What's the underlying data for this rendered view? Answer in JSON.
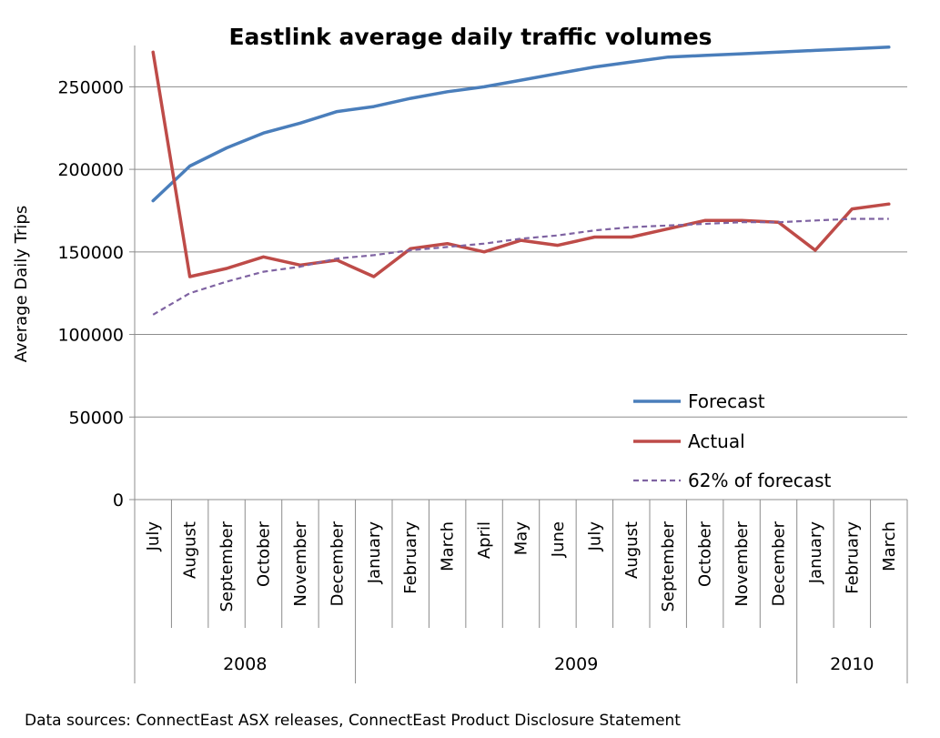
{
  "chart_data": {
    "type": "line",
    "title": "Eastlink average daily traffic volumes",
    "ylabel": "Average Daily Trips",
    "xlabel": "",
    "ylim": [
      0,
      275000
    ],
    "yticks": [
      0,
      50000,
      100000,
      150000,
      200000,
      250000
    ],
    "ytick_labels": [
      "0",
      "50000",
      "100000",
      "150000",
      "200000",
      "250000"
    ],
    "grid": "horizontal",
    "legend_position": "lower-right",
    "categories": [
      "July",
      "August",
      "September",
      "October",
      "November",
      "December",
      "January",
      "February",
      "March",
      "April",
      "May",
      "June",
      "July",
      "August",
      "September",
      "October",
      "November",
      "December",
      "January",
      "February",
      "March"
    ],
    "year_groups": [
      {
        "label": "2008",
        "count": 6
      },
      {
        "label": "2009",
        "count": 12
      },
      {
        "label": "2010",
        "count": 3
      }
    ],
    "series": [
      {
        "name": "Forecast",
        "color": "#4a7ebb",
        "style": "solid",
        "values": [
          181000,
          202000,
          213000,
          222000,
          228000,
          235000,
          238000,
          243000,
          247000,
          250000,
          254000,
          258000,
          262000,
          265000,
          268000,
          269000,
          270000,
          271000,
          272000,
          273000,
          274000
        ]
      },
      {
        "name": "Actual",
        "color": "#be4b48",
        "style": "solid",
        "values": [
          271000,
          135000,
          140000,
          147000,
          142000,
          145000,
          135000,
          152000,
          155000,
          150000,
          157000,
          154000,
          159000,
          159000,
          164000,
          169000,
          169000,
          168000,
          151000,
          176000,
          179000
        ]
      },
      {
        "name": "62% of forecast",
        "color": "#7f63a2",
        "style": "dashed",
        "values": [
          112000,
          125000,
          132000,
          138000,
          141000,
          146000,
          148000,
          151000,
          153000,
          155000,
          158000,
          160000,
          163000,
          165000,
          166000,
          167000,
          168000,
          168000,
          169000,
          170000,
          170000
        ]
      }
    ]
  },
  "footer": {
    "source": "Data sources: ConnectEast ASX releases, ConnectEast Product Disclosure Statement"
  }
}
